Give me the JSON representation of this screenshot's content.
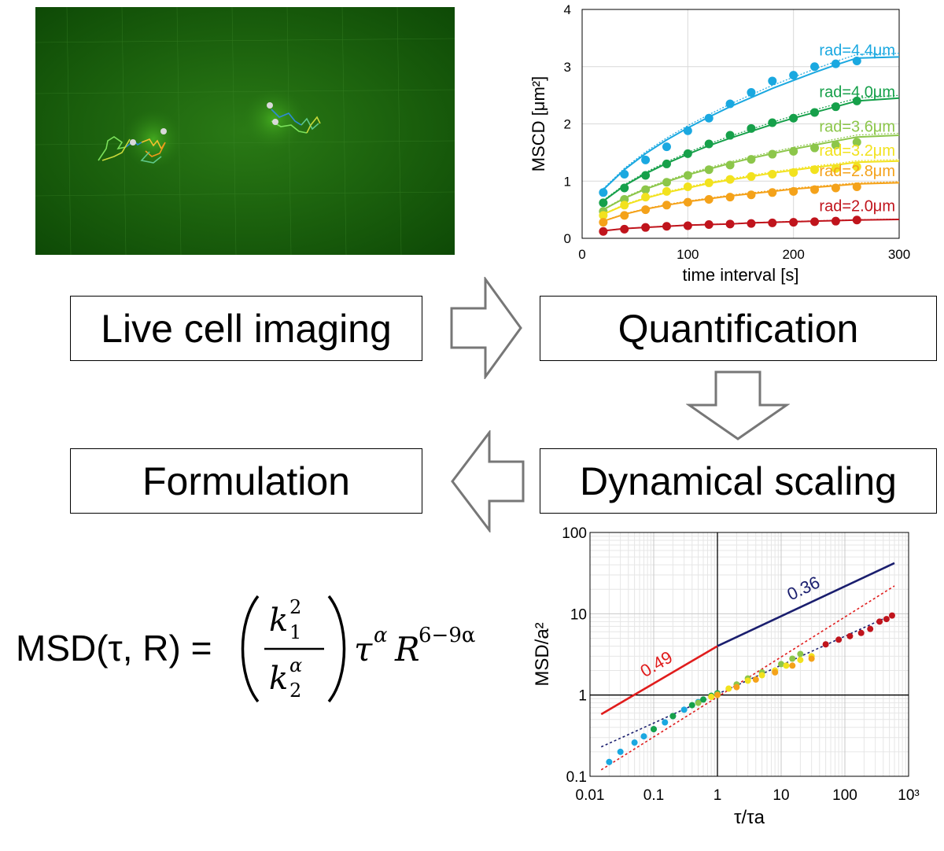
{
  "boxes": {
    "live": "Live cell imaging",
    "quant": "Quantification",
    "dyn": "Dynamical scaling",
    "form": "Formulation"
  },
  "formula": {
    "lhs": "MSD(τ, R) =",
    "k1": "k",
    "k1_sub": "1",
    "k1_sup": "2",
    "k2": "k",
    "k2_sub": "2",
    "k2_sup": "α",
    "tau": "τ",
    "tau_sup": "α",
    "R": "R",
    "R_sup": "6−9α"
  },
  "colors": {
    "micro_bg": "#1f6b10",
    "arrow": "#777777"
  },
  "chart_data": [
    {
      "type": "scatter",
      "title": "",
      "xlabel": "time interval [s]",
      "ylabel": "MSCD [μm²]",
      "xlim": [
        0,
        300
      ],
      "ylim": [
        0,
        4
      ],
      "xticks": [
        0,
        100,
        200,
        300
      ],
      "yticks": [
        0,
        1,
        2,
        3,
        4
      ],
      "grid": true,
      "x": [
        20,
        40,
        60,
        80,
        100,
        120,
        140,
        160,
        180,
        200,
        220,
        240,
        260
      ],
      "series": [
        {
          "name": "rad=4.4μm",
          "color": "#1aa8e0",
          "values": [
            0.8,
            1.12,
            1.37,
            1.6,
            1.88,
            2.1,
            2.35,
            2.55,
            2.75,
            2.85,
            3.0,
            3.05,
            3.1
          ]
        },
        {
          "name": "rad=4.0μm",
          "color": "#16a04a",
          "values": [
            0.62,
            0.88,
            1.1,
            1.3,
            1.48,
            1.65,
            1.8,
            1.92,
            2.02,
            2.1,
            2.2,
            2.3,
            2.4
          ]
        },
        {
          "name": "rad=3.6μm",
          "color": "#8cc64a",
          "values": [
            0.47,
            0.68,
            0.85,
            0.98,
            1.1,
            1.2,
            1.28,
            1.38,
            1.47,
            1.52,
            1.58,
            1.63,
            1.68
          ]
        },
        {
          "name": "rad=3.2μm",
          "color": "#f2e21e",
          "values": [
            0.4,
            0.58,
            0.72,
            0.82,
            0.9,
            0.97,
            1.03,
            1.08,
            1.12,
            1.15,
            1.2,
            1.22,
            1.25
          ]
        },
        {
          "name": "rad=2.8μm",
          "color": "#f4a21a",
          "values": [
            0.28,
            0.4,
            0.5,
            0.58,
            0.63,
            0.68,
            0.72,
            0.76,
            0.8,
            0.82,
            0.85,
            0.88,
            0.9
          ]
        },
        {
          "name": "rad=2.0μm",
          "color": "#c0141c",
          "values": [
            0.12,
            0.16,
            0.19,
            0.21,
            0.22,
            0.24,
            0.25,
            0.26,
            0.27,
            0.28,
            0.29,
            0.3,
            0.32
          ]
        }
      ],
      "fit_curves": [
        {
          "color": "#1aa8e0",
          "values": [
            0.85,
            1.2,
            1.48,
            1.72,
            1.93,
            2.12,
            2.3,
            2.46,
            2.62,
            2.76,
            2.9,
            3.03,
            3.15,
            3.17
          ]
        },
        {
          "color": "#16a04a",
          "values": [
            0.65,
            0.92,
            1.13,
            1.31,
            1.47,
            1.62,
            1.75,
            1.87,
            1.99,
            2.1,
            2.2,
            2.3,
            2.4,
            2.45
          ]
        },
        {
          "color": "#8cc64a",
          "values": [
            0.5,
            0.7,
            0.86,
            0.99,
            1.11,
            1.21,
            1.31,
            1.4,
            1.48,
            1.56,
            1.63,
            1.7,
            1.77,
            1.8
          ]
        },
        {
          "color": "#f2e21e",
          "values": [
            0.42,
            0.58,
            0.7,
            0.8,
            0.88,
            0.96,
            1.02,
            1.08,
            1.14,
            1.19,
            1.24,
            1.28,
            1.33,
            1.35
          ]
        },
        {
          "color": "#f4a21a",
          "values": [
            0.3,
            0.42,
            0.51,
            0.58,
            0.64,
            0.69,
            0.74,
            0.78,
            0.82,
            0.86,
            0.89,
            0.92,
            0.95,
            0.97
          ]
        },
        {
          "color": "#c0141c",
          "values": [
            0.13,
            0.17,
            0.19,
            0.21,
            0.23,
            0.24,
            0.25,
            0.27,
            0.28,
            0.29,
            0.3,
            0.31,
            0.32,
            0.33
          ]
        }
      ],
      "fit_x": [
        20,
        40,
        60,
        80,
        100,
        120,
        140,
        160,
        180,
        200,
        220,
        240,
        260,
        300
      ]
    },
    {
      "type": "scatter",
      "title": "",
      "xlabel": "τ/τa",
      "ylabel": "MSD/a²",
      "xscale": "log",
      "yscale": "log",
      "xlim": [
        0.01,
        1000
      ],
      "ylim": [
        0.1,
        100
      ],
      "xticks": [
        "0.01",
        "0.1",
        "1",
        "10",
        "100",
        "10³"
      ],
      "yticks": [
        "0.1",
        "1",
        "10",
        "100"
      ],
      "grid": true,
      "annotations": [
        "0.49",
        "0.36"
      ],
      "guide_lines": [
        {
          "label": "0.49",
          "color": "#e01c1c",
          "x": [
            0.015,
            1
          ],
          "y": [
            0.58,
            4
          ]
        },
        {
          "label": "0.36",
          "color": "#1a1e6e",
          "x": [
            1,
            600
          ],
          "y": [
            4,
            42
          ]
        }
      ],
      "dotted_fits": [
        {
          "color": "#e01c1c",
          "x": [
            0.015,
            600
          ],
          "y": [
            0.12,
            22
          ]
        },
        {
          "color": "#1a1e6e",
          "x": [
            0.015,
            600
          ],
          "y": [
            0.23,
            10
          ]
        }
      ],
      "series": [
        {
          "color": "#1aa8e0",
          "x": [
            0.02,
            0.03,
            0.05,
            0.07,
            0.1,
            0.15,
            0.2,
            0.3,
            0.5
          ],
          "y": [
            0.15,
            0.2,
            0.26,
            0.31,
            0.38,
            0.46,
            0.55,
            0.66,
            0.82
          ]
        },
        {
          "color": "#16a04a",
          "x": [
            0.1,
            0.2,
            0.4,
            0.6,
            0.8,
            1.0
          ],
          "y": [
            0.38,
            0.55,
            0.75,
            0.88,
            0.98,
            1.05
          ]
        },
        {
          "color": "#8cc64a",
          "x": [
            0.5,
            1,
            2,
            3,
            5,
            10,
            15,
            20
          ],
          "y": [
            0.8,
            1.02,
            1.35,
            1.6,
            1.9,
            2.4,
            2.8,
            3.2
          ]
        },
        {
          "color": "#f2e21e",
          "x": [
            0.8,
            1.5,
            3,
            5,
            8,
            12,
            20,
            30
          ],
          "y": [
            0.95,
            1.2,
            1.5,
            1.75,
            2.0,
            2.3,
            2.7,
            3.0
          ]
        },
        {
          "color": "#f4a21a",
          "x": [
            1,
            2,
            4,
            8,
            15,
            30
          ],
          "y": [
            1.0,
            1.25,
            1.55,
            1.9,
            2.3,
            2.8
          ]
        },
        {
          "color": "#c0141c",
          "x": [
            50,
            80,
            120,
            180,
            250,
            350,
            450,
            550
          ],
          "y": [
            4.2,
            4.8,
            5.3,
            5.8,
            6.5,
            8.0,
            8.6,
            9.5
          ]
        }
      ]
    }
  ]
}
